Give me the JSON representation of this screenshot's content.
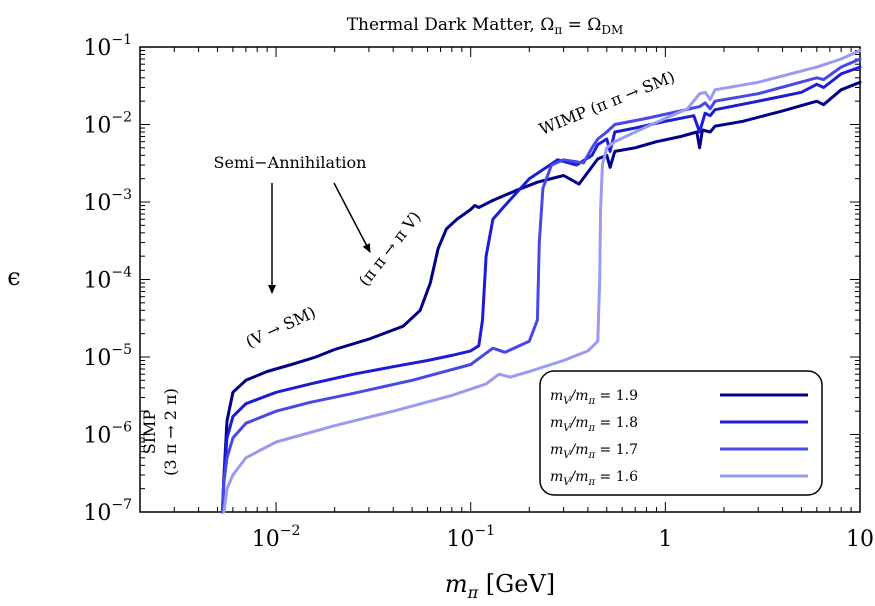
{
  "chart_data": {
    "type": "line",
    "title": "Thermal Dark Matter, Ω_π = Ω_DM",
    "xlabel": "m_π [GeV]",
    "ylabel": "ϵ",
    "xscale": "log",
    "yscale": "log",
    "xlim": [
      0.002,
      10
    ],
    "ylim": [
      1e-07,
      0.1
    ],
    "grid": false,
    "legend_position": "bottom-right",
    "x_ticks": [
      {
        "value": 0.01,
        "base": "10",
        "exp": "−2"
      },
      {
        "value": 0.1,
        "base": "10",
        "exp": "−1"
      },
      {
        "value": 1,
        "base": "1",
        "exp": ""
      },
      {
        "value": 10,
        "base": "10",
        "exp": ""
      }
    ],
    "y_ticks": [
      {
        "value": 1e-07,
        "base": "10",
        "exp": "−7"
      },
      {
        "value": 1e-06,
        "base": "10",
        "exp": "−6"
      },
      {
        "value": 1e-05,
        "base": "10",
        "exp": "−5"
      },
      {
        "value": 0.0001,
        "base": "10",
        "exp": "−4"
      },
      {
        "value": 0.001,
        "base": "10",
        "exp": "−3"
      },
      {
        "value": 0.01,
        "base": "10",
        "exp": "−2"
      },
      {
        "value": 0.1,
        "base": "10",
        "exp": "−1"
      }
    ],
    "series": [
      {
        "name": "m_V/m_π = 1.9",
        "color": "#00008b",
        "points": [
          [
            0.0053,
            1e-07
          ],
          [
            0.0054,
            3e-07
          ],
          [
            0.0056,
            1.5e-06
          ],
          [
            0.006,
            3.5e-06
          ],
          [
            0.007,
            5e-06
          ],
          [
            0.009,
            6.5e-06
          ],
          [
            0.012,
            8e-06
          ],
          [
            0.016,
            1e-05
          ],
          [
            0.02,
            1.25e-05
          ],
          [
            0.03,
            1.7e-05
          ],
          [
            0.045,
            2.5e-05
          ],
          [
            0.055,
            4e-05
          ],
          [
            0.062,
            9e-05
          ],
          [
            0.068,
            0.00025
          ],
          [
            0.075,
            0.00045
          ],
          [
            0.085,
            0.0006
          ],
          [
            0.1,
            0.0008
          ],
          [
            0.105,
            0.0009
          ],
          [
            0.11,
            0.00085
          ],
          [
            0.13,
            0.00105
          ],
          [
            0.17,
            0.0014
          ],
          [
            0.22,
            0.0018
          ],
          [
            0.3,
            0.0022
          ],
          [
            0.36,
            0.0017
          ],
          [
            0.45,
            0.0036
          ],
          [
            0.5,
            0.004
          ],
          [
            0.52,
            0.0028
          ],
          [
            0.55,
            0.0045
          ],
          [
            0.7,
            0.005
          ],
          [
            0.9,
            0.006
          ],
          [
            1.2,
            0.007
          ],
          [
            1.45,
            0.008
          ],
          [
            1.5,
            0.005
          ],
          [
            1.55,
            0.0085
          ],
          [
            1.7,
            0.008
          ],
          [
            1.8,
            0.0095
          ],
          [
            2.5,
            0.011
          ],
          [
            4,
            0.015
          ],
          [
            6,
            0.02
          ],
          [
            6.5,
            0.018
          ],
          [
            8,
            0.028
          ],
          [
            10,
            0.035
          ]
        ]
      },
      {
        "name": "m_V/m_π = 1.8",
        "color": "#1c1cd6",
        "points": [
          [
            0.0053,
            1e-07
          ],
          [
            0.0054,
            3e-07
          ],
          [
            0.0056,
            9e-07
          ],
          [
            0.006,
            1.7e-06
          ],
          [
            0.007,
            2.5e-06
          ],
          [
            0.01,
            3.5e-06
          ],
          [
            0.015,
            4.5e-06
          ],
          [
            0.025,
            6e-06
          ],
          [
            0.04,
            7.5e-06
          ],
          [
            0.06,
            9e-06
          ],
          [
            0.08,
            1.05e-05
          ],
          [
            0.1,
            1.2e-05
          ],
          [
            0.11,
            1.4e-05
          ],
          [
            0.115,
            3e-05
          ],
          [
            0.12,
            0.0002
          ],
          [
            0.13,
            0.0006
          ],
          [
            0.15,
            0.0009
          ],
          [
            0.2,
            0.002
          ],
          [
            0.28,
            0.0035
          ],
          [
            0.35,
            0.003
          ],
          [
            0.42,
            0.004
          ],
          [
            0.45,
            0.0055
          ],
          [
            0.5,
            0.0065
          ],
          [
            0.52,
            0.0045
          ],
          [
            0.55,
            0.008
          ],
          [
            0.7,
            0.009
          ],
          [
            1,
            0.011
          ],
          [
            1.4,
            0.013
          ],
          [
            1.5,
            0.008
          ],
          [
            1.6,
            0.014
          ],
          [
            1.7,
            0.013
          ],
          [
            1.8,
            0.0155
          ],
          [
            3,
            0.02
          ],
          [
            5,
            0.026
          ],
          [
            6,
            0.033
          ],
          [
            6.5,
            0.03
          ],
          [
            8,
            0.045
          ],
          [
            10,
            0.055
          ]
        ]
      },
      {
        "name": "m_V/m_π = 1.7",
        "color": "#4848e8",
        "points": [
          [
            0.0053,
            1e-07
          ],
          [
            0.0054,
            2.5e-07
          ],
          [
            0.0056,
            5e-07
          ],
          [
            0.006,
            9e-07
          ],
          [
            0.007,
            1.4e-06
          ],
          [
            0.01,
            2e-06
          ],
          [
            0.015,
            2.6e-06
          ],
          [
            0.025,
            3.4e-06
          ],
          [
            0.05,
            5e-06
          ],
          [
            0.1,
            8e-06
          ],
          [
            0.13,
            1.3e-05
          ],
          [
            0.15,
            1.15e-05
          ],
          [
            0.2,
            1.6e-05
          ],
          [
            0.22,
            3e-05
          ],
          [
            0.225,
            0.0003
          ],
          [
            0.235,
            0.0015
          ],
          [
            0.26,
            0.003
          ],
          [
            0.3,
            0.0035
          ],
          [
            0.38,
            0.0032
          ],
          [
            0.42,
            0.005
          ],
          [
            0.45,
            0.0065
          ],
          [
            0.5,
            0.008
          ],
          [
            0.55,
            0.01
          ],
          [
            0.8,
            0.012
          ],
          [
            1.2,
            0.015
          ],
          [
            1.5,
            0.017
          ],
          [
            1.6,
            0.019
          ],
          [
            1.7,
            0.016
          ],
          [
            1.8,
            0.02
          ],
          [
            3,
            0.025
          ],
          [
            6,
            0.04
          ],
          [
            6.5,
            0.038
          ],
          [
            8,
            0.055
          ],
          [
            10,
            0.07
          ]
        ]
      },
      {
        "name": "m_V/m_π = 1.6",
        "color": "#9a9af2",
        "points": [
          [
            0.0054,
            1e-07
          ],
          [
            0.0056,
            2e-07
          ],
          [
            0.006,
            3e-07
          ],
          [
            0.007,
            5e-07
          ],
          [
            0.01,
            8e-07
          ],
          [
            0.02,
            1.3e-06
          ],
          [
            0.04,
            2e-06
          ],
          [
            0.08,
            3.2e-06
          ],
          [
            0.12,
            4.5e-06
          ],
          [
            0.14,
            6e-06
          ],
          [
            0.16,
            5.5e-06
          ],
          [
            0.2,
            6.5e-06
          ],
          [
            0.3,
            9e-06
          ],
          [
            0.4,
            1.2e-05
          ],
          [
            0.45,
            1.6e-05
          ],
          [
            0.46,
            0.0001
          ],
          [
            0.465,
            0.0008
          ],
          [
            0.475,
            0.003
          ],
          [
            0.5,
            0.005
          ],
          [
            0.55,
            0.006
          ],
          [
            0.7,
            0.008
          ],
          [
            1,
            0.012
          ],
          [
            1.3,
            0.016
          ],
          [
            1.5,
            0.025
          ],
          [
            1.6,
            0.026
          ],
          [
            1.7,
            0.021
          ],
          [
            1.8,
            0.028
          ],
          [
            3,
            0.035
          ],
          [
            6,
            0.055
          ],
          [
            8,
            0.07
          ],
          [
            10,
            0.09
          ]
        ]
      }
    ],
    "annotations": [
      {
        "id": "semi",
        "text": "Semi−Annihilation"
      },
      {
        "id": "vsm",
        "text": "(V → SM)"
      },
      {
        "id": "pipi",
        "text": "(π π → π V)"
      },
      {
        "id": "wimp",
        "text": "WIMP (π π → SM)"
      },
      {
        "id": "simp1",
        "text": "SIMP"
      },
      {
        "id": "simp2",
        "text": "(3 π → 2 π)"
      }
    ]
  }
}
